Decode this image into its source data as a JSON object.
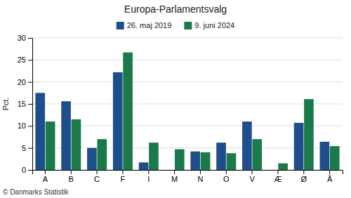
{
  "chart_data": {
    "type": "bar",
    "title": "Europa-Parlamentsvalg",
    "categories": [
      "A",
      "B",
      "C",
      "F",
      "I",
      "M",
      "N",
      "O",
      "V",
      "Æ",
      "Ø",
      "Å"
    ],
    "series": [
      {
        "name": "26. maj 2019",
        "color": "#1e4e8c",
        "values": [
          17.5,
          15.6,
          5.0,
          22.2,
          1.7,
          0,
          4.2,
          6.2,
          11.0,
          0,
          10.7,
          6.4
        ]
      },
      {
        "name": "9. juni 2024",
        "color": "#1a7a4a",
        "values": [
          11.0,
          11.5,
          7.0,
          26.7,
          6.2,
          4.7,
          4.0,
          3.8,
          7.0,
          1.5,
          16.1,
          5.4
        ]
      }
    ],
    "ylabel": "Pct.",
    "ylim": [
      0,
      30
    ],
    "yticks": [
      0,
      5,
      10,
      15,
      20,
      25,
      30
    ],
    "grid": true,
    "legend": "top",
    "footer": "© Danmarks Statistik"
  }
}
